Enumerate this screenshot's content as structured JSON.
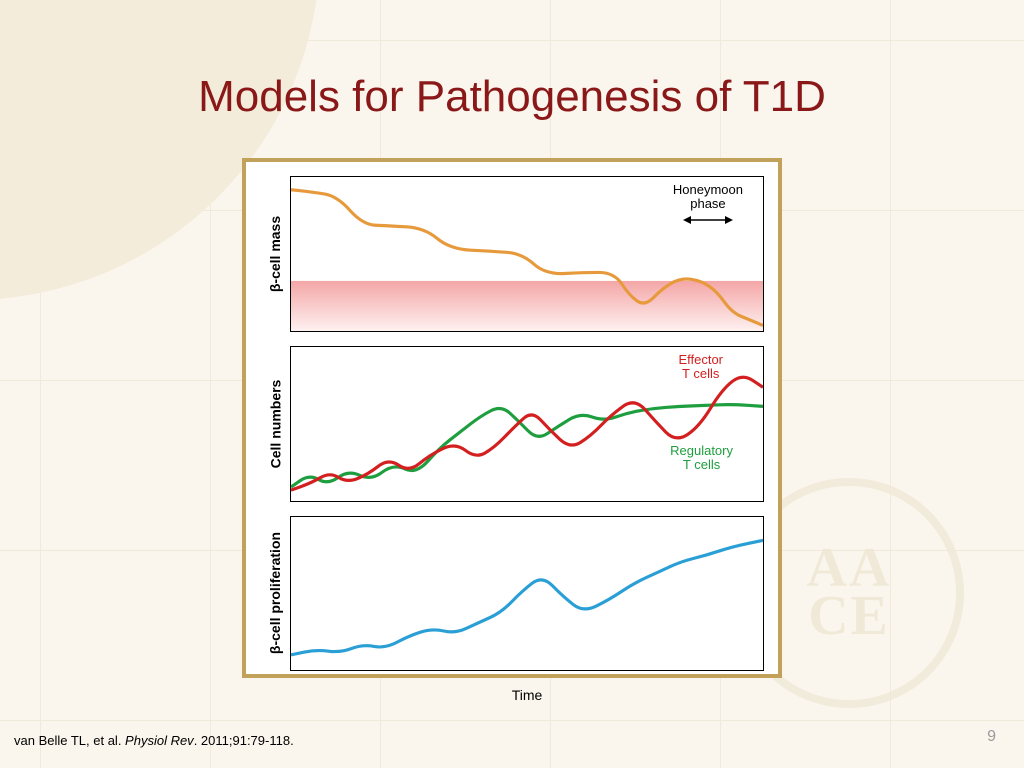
{
  "slide": {
    "title": "Models for Pathogenesis of T1D",
    "title_color": "#8a1818",
    "title_fontsize": 44,
    "page_number": "9",
    "background_color": "#faf6ed",
    "grid_color": "#ece3cf",
    "arc_color": "#f3ecdb"
  },
  "frame": {
    "border_color": "#c2a15b",
    "background": "#ffffff",
    "xlabel": "Time"
  },
  "panel1": {
    "ylabel": "β-cell mass",
    "annotation": "Honeymoon\nphase",
    "annotation_color": "#000000",
    "threshold_band_top_color": "#f4a6a6",
    "threshold_band_bottom_color": "#fef0f0",
    "line_color": "#e79a3c",
    "line_points": [
      [
        0,
        12
      ],
      [
        20,
        14
      ],
      [
        45,
        18
      ],
      [
        70,
        45
      ],
      [
        95,
        46
      ],
      [
        130,
        48
      ],
      [
        155,
        68
      ],
      [
        195,
        70
      ],
      [
        225,
        72
      ],
      [
        248,
        92
      ],
      [
        285,
        90
      ],
      [
        315,
        90
      ],
      [
        330,
        112
      ],
      [
        345,
        122
      ],
      [
        362,
        105
      ],
      [
        380,
        95
      ],
      [
        400,
        98
      ],
      [
        415,
        108
      ],
      [
        430,
        128
      ],
      [
        448,
        135
      ],
      [
        460,
        140
      ]
    ]
  },
  "panel2": {
    "ylabel": "Cell numbers",
    "effector": {
      "label": "Effector\nT cells",
      "color": "#d31f1f",
      "points": [
        [
          0,
          135
        ],
        [
          20,
          128
        ],
        [
          38,
          118
        ],
        [
          55,
          128
        ],
        [
          75,
          120
        ],
        [
          95,
          105
        ],
        [
          115,
          118
        ],
        [
          135,
          102
        ],
        [
          160,
          90
        ],
        [
          180,
          105
        ],
        [
          198,
          95
        ],
        [
          218,
          75
        ],
        [
          235,
          60
        ],
        [
          252,
          78
        ],
        [
          272,
          96
        ],
        [
          292,
          84
        ],
        [
          312,
          64
        ],
        [
          335,
          48
        ],
        [
          355,
          70
        ],
        [
          375,
          90
        ],
        [
          398,
          75
        ],
        [
          420,
          40
        ],
        [
          440,
          25
        ],
        [
          460,
          38
        ]
      ]
    },
    "regulatory": {
      "label": "Regulatory\nT cells",
      "color": "#1e9e3e",
      "points": [
        [
          0,
          132
        ],
        [
          18,
          120
        ],
        [
          36,
          130
        ],
        [
          56,
          116
        ],
        [
          78,
          126
        ],
        [
          100,
          110
        ],
        [
          122,
          120
        ],
        [
          145,
          95
        ],
        [
          165,
          80
        ],
        [
          185,
          65
        ],
        [
          205,
          55
        ],
        [
          222,
          70
        ],
        [
          240,
          88
        ],
        [
          260,
          75
        ],
        [
          282,
          62
        ],
        [
          305,
          70
        ],
        [
          328,
          62
        ],
        [
          352,
          58
        ],
        [
          378,
          56
        ],
        [
          405,
          55
        ],
        [
          430,
          54
        ],
        [
          460,
          56
        ]
      ]
    }
  },
  "panel3": {
    "ylabel": "β-cell proliferation",
    "line_color": "#2a9fd6",
    "line_points": [
      [
        0,
        130
      ],
      [
        25,
        125
      ],
      [
        48,
        128
      ],
      [
        70,
        120
      ],
      [
        92,
        124
      ],
      [
        115,
        112
      ],
      [
        138,
        105
      ],
      [
        160,
        110
      ],
      [
        182,
        100
      ],
      [
        205,
        90
      ],
      [
        225,
        70
      ],
      [
        245,
        55
      ],
      [
        265,
        75
      ],
      [
        285,
        90
      ],
      [
        310,
        78
      ],
      [
        335,
        62
      ],
      [
        358,
        52
      ],
      [
        380,
        42
      ],
      [
        405,
        36
      ],
      [
        430,
        28
      ],
      [
        460,
        22
      ]
    ]
  },
  "citation": {
    "authors": "van Belle TL, et al. ",
    "journal": "Physiol Rev",
    "rest": ". 2011;91:79-118."
  },
  "seal": {
    "text_top": "AA",
    "text_bottom": "CE"
  }
}
